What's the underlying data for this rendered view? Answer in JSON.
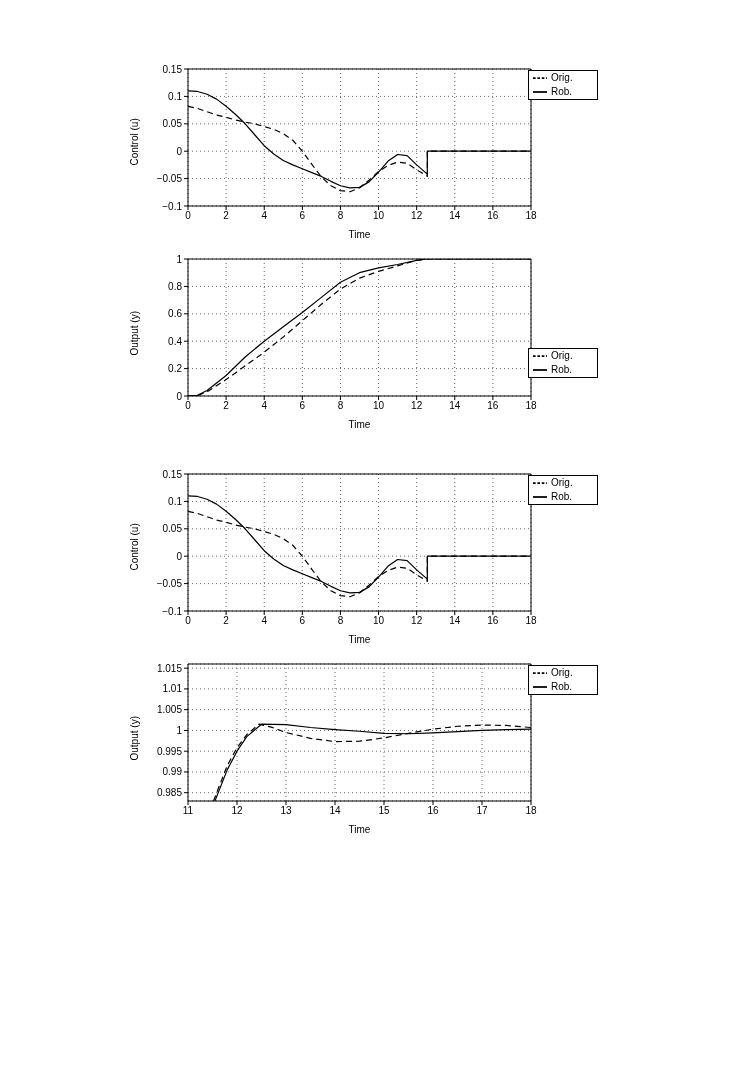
{
  "chart_data": [
    {
      "type": "line",
      "xlabel": "Time",
      "ylabel": "Control (u)",
      "xlim": [
        0,
        18
      ],
      "xticks": [
        0,
        2,
        4,
        6,
        8,
        10,
        12,
        14,
        16,
        18
      ],
      "ylim": [
        -0.1,
        0.15
      ],
      "yticks": [
        -0.1,
        -0.05,
        0,
        0.05,
        0.1,
        0.15
      ],
      "grid": true,
      "legend": "top right",
      "series": [
        {
          "name": "Rob.",
          "color": "#000000",
          "line_style": "solid",
          "x": [
            0,
            0.5,
            1,
            1.5,
            2,
            2.5,
            3,
            3.5,
            4,
            4.5,
            5,
            5.5,
            6,
            6.5,
            7,
            7.5,
            8,
            8.5,
            9,
            9.5,
            10,
            10.5,
            11,
            11.5,
            12,
            12.5,
            12.56,
            12.56,
            14,
            18
          ],
          "values": [
            0.11,
            0.109,
            0.104,
            0.095,
            0.082,
            0.067,
            0.05,
            0.03,
            0.01,
            -0.005,
            -0.017,
            -0.025,
            -0.032,
            -0.039,
            -0.046,
            -0.055,
            -0.063,
            -0.067,
            -0.066,
            -0.056,
            -0.038,
            -0.018,
            -0.006,
            -0.008,
            -0.025,
            -0.04,
            -0.042,
            0,
            0,
            0
          ]
        },
        {
          "name": "Orig.",
          "color": "#000000",
          "line_style": "dashed",
          "x": [
            0,
            0.5,
            1,
            1.5,
            2,
            2.5,
            3,
            3.5,
            4,
            4.5,
            5,
            5.5,
            6,
            6.5,
            7,
            7.5,
            8,
            8.5,
            9,
            9.5,
            10,
            10.5,
            11,
            11.5,
            12,
            12.5,
            12.56,
            12.56,
            14,
            18
          ],
          "values": [
            0.082,
            0.078,
            0.072,
            0.066,
            0.062,
            0.057,
            0.053,
            0.05,
            0.045,
            0.04,
            0.032,
            0.02,
            0,
            -0.024,
            -0.047,
            -0.063,
            -0.072,
            -0.074,
            -0.067,
            -0.053,
            -0.037,
            -0.026,
            -0.02,
            -0.022,
            -0.034,
            -0.044,
            -0.046,
            0,
            0,
            0
          ]
        }
      ]
    },
    {
      "type": "line",
      "xlabel": "Time",
      "ylabel": "Output (y)",
      "xlim": [
        0,
        18
      ],
      "xticks": [
        0,
        2,
        4,
        6,
        8,
        10,
        12,
        14,
        16,
        18
      ],
      "ylim": [
        0,
        1
      ],
      "yticks": [
        0,
        0.2,
        0.4,
        0.6,
        0.8,
        1
      ],
      "grid": true,
      "legend": "bottom right",
      "series": [
        {
          "name": "Rob.",
          "color": "#000000",
          "line_style": "solid",
          "x": [
            0,
            0.5,
            1,
            2,
            3,
            4,
            5,
            6,
            7,
            8,
            9,
            10,
            11,
            12,
            12.5,
            18
          ],
          "values": [
            0,
            0.005,
            0.04,
            0.15,
            0.285,
            0.4,
            0.505,
            0.61,
            0.72,
            0.83,
            0.9,
            0.935,
            0.96,
            0.99,
            1,
            1
          ]
        },
        {
          "name": "Orig.",
          "color": "#000000",
          "line_style": "dashed",
          "x": [
            0,
            0.5,
            1,
            2,
            3,
            4,
            5,
            6,
            7,
            8,
            9,
            10,
            11,
            12,
            12.5,
            18
          ],
          "values": [
            0,
            0.003,
            0.03,
            0.12,
            0.22,
            0.32,
            0.43,
            0.55,
            0.67,
            0.78,
            0.86,
            0.91,
            0.95,
            0.99,
            1,
            1
          ]
        }
      ]
    },
    {
      "type": "line",
      "xlabel": "Time",
      "ylabel": "Control (u)",
      "xlim": [
        0,
        18
      ],
      "xticks": [
        0,
        2,
        4,
        6,
        8,
        10,
        12,
        14,
        16,
        18
      ],
      "ylim": [
        -0.1,
        0.15
      ],
      "yticks": [
        -0.1,
        -0.05,
        0,
        0.05,
        0.1,
        0.15
      ],
      "grid": true,
      "legend": "top right",
      "series": [
        {
          "name": "Rob.",
          "color": "#000000",
          "line_style": "solid",
          "x": [
            0,
            0.5,
            1,
            1.5,
            2,
            2.5,
            3,
            3.5,
            4,
            4.5,
            5,
            5.5,
            6,
            6.5,
            7,
            7.5,
            8,
            8.5,
            9,
            9.5,
            10,
            10.5,
            11,
            11.5,
            12,
            12.5,
            12.56,
            12.56,
            14,
            18
          ],
          "values": [
            0.11,
            0.109,
            0.104,
            0.095,
            0.082,
            0.067,
            0.05,
            0.03,
            0.01,
            -0.005,
            -0.017,
            -0.025,
            -0.032,
            -0.039,
            -0.046,
            -0.055,
            -0.063,
            -0.067,
            -0.066,
            -0.056,
            -0.038,
            -0.018,
            -0.006,
            -0.008,
            -0.025,
            -0.04,
            -0.042,
            0,
            0,
            0
          ]
        },
        {
          "name": "Orig.",
          "color": "#000000",
          "line_style": "dashed",
          "x": [
            0,
            0.5,
            1,
            1.5,
            2,
            2.5,
            3,
            3.5,
            4,
            4.5,
            5,
            5.5,
            6,
            6.5,
            7,
            7.5,
            8,
            8.5,
            9,
            9.5,
            10,
            10.5,
            11,
            11.5,
            12,
            12.5,
            12.56,
            12.56,
            14,
            18
          ],
          "values": [
            0.082,
            0.078,
            0.072,
            0.066,
            0.062,
            0.057,
            0.053,
            0.05,
            0.045,
            0.04,
            0.032,
            0.02,
            0,
            -0.024,
            -0.047,
            -0.063,
            -0.072,
            -0.074,
            -0.067,
            -0.053,
            -0.037,
            -0.026,
            -0.02,
            -0.022,
            -0.034,
            -0.044,
            -0.046,
            0,
            0,
            0
          ]
        }
      ]
    },
    {
      "type": "line",
      "xlabel": "Time",
      "ylabel": "Output (y)",
      "xlim": [
        11,
        18
      ],
      "xticks": [
        11,
        12,
        13,
        14,
        15,
        16,
        17,
        18
      ],
      "ylim": [
        0.983,
        1.016
      ],
      "yticks": [
        0.985,
        0.99,
        0.995,
        1,
        1.005,
        1.01,
        1.015
      ],
      "grid": true,
      "legend": "top right",
      "series": [
        {
          "name": "Rob.",
          "color": "#000000",
          "line_style": "solid",
          "x": [
            11.55,
            11.8,
            12,
            12.2,
            12.5,
            13,
            13.5,
            14,
            14.5,
            15,
            15.5,
            16,
            16.5,
            17,
            17.5,
            18
          ],
          "values": [
            0.983,
            0.9905,
            0.995,
            0.9985,
            1.0015,
            1.0014,
            1.0007,
            1.0002,
            0.9998,
            0.9993,
            0.9992,
            0.9994,
            0.9997,
            1,
            1.0002,
            1.0003
          ]
        },
        {
          "name": "Orig.",
          "color": "#000000",
          "line_style": "dashed",
          "x": [
            11.52,
            11.8,
            12,
            12.2,
            12.45,
            12.7,
            13,
            13.5,
            14,
            14.5,
            15,
            15.5,
            16,
            16.5,
            17,
            17.5,
            18
          ],
          "values": [
            0.983,
            0.9915,
            0.9958,
            0.999,
            1.0015,
            1.0008,
            0.9995,
            0.9981,
            0.9973,
            0.9974,
            0.9982,
            0.9993,
            1.0003,
            1.001,
            1.0013,
            1.0012,
            1.0007
          ]
        }
      ]
    }
  ]
}
